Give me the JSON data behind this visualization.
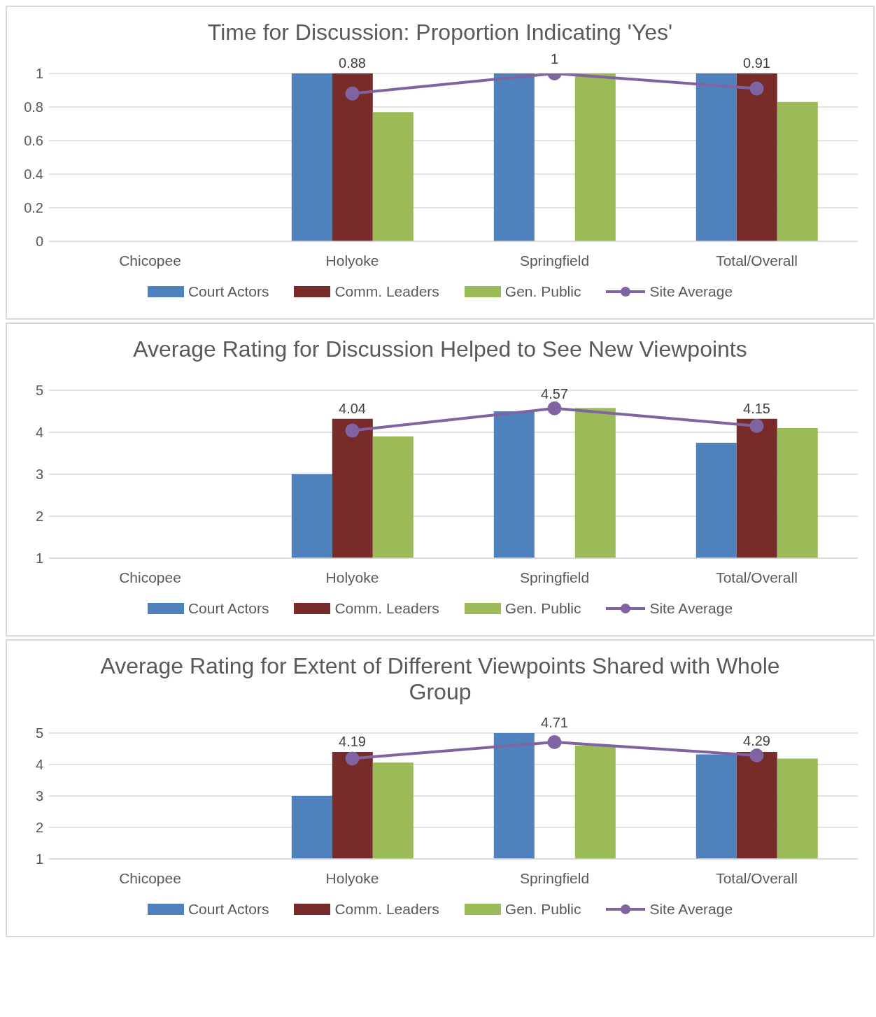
{
  "chart_data": [
    {
      "type": "bar",
      "title": "Time for Discussion: Proportion Indicating 'Yes'",
      "categories": [
        "Chicopee",
        "Holyoke",
        "Springfield",
        "Total/Overall"
      ],
      "ylim": [
        0,
        1
      ],
      "yticks": [
        0,
        0.2,
        0.4,
        0.6,
        0.8,
        1
      ],
      "grid": "y",
      "legend": "bottom",
      "series": [
        {
          "name": "Court Actors",
          "color": "#4f81bd",
          "values": [
            null,
            1,
            1,
            1
          ]
        },
        {
          "name": "Comm. Leaders",
          "color": "#772c2a",
          "values": [
            null,
            1,
            null,
            1
          ]
        },
        {
          "name": "Gen. Public",
          "color": "#9bbb59",
          "values": [
            null,
            0.77,
            1,
            0.83
          ]
        },
        {
          "name": "Site Average",
          "type": "line",
          "color": "#8064a2",
          "marker": "circle",
          "values": [
            null,
            0.88,
            1,
            0.91
          ],
          "value_labels": [
            null,
            "0.88",
            "1",
            "0.91"
          ]
        }
      ]
    },
    {
      "type": "bar",
      "title": "Average Rating for Discussion Helped to See New Viewpoints",
      "categories": [
        "Chicopee",
        "Holyoke",
        "Springfield",
        "Total/Overall"
      ],
      "ylim": [
        1,
        5
      ],
      "yticks": [
        1,
        2,
        3,
        4,
        5
      ],
      "grid": "y",
      "legend": "bottom",
      "series": [
        {
          "name": "Court Actors",
          "color": "#4f81bd",
          "values": [
            null,
            3,
            4.5,
            3.75
          ]
        },
        {
          "name": "Comm. Leaders",
          "color": "#772c2a",
          "values": [
            null,
            4.32,
            null,
            4.32
          ]
        },
        {
          "name": "Gen. Public",
          "color": "#9bbb59",
          "values": [
            null,
            3.9,
            4.58,
            4.1
          ]
        },
        {
          "name": "Site Average",
          "type": "line",
          "color": "#8064a2",
          "marker": "circle",
          "values": [
            null,
            4.04,
            4.57,
            4.15
          ],
          "value_labels": [
            null,
            "4.04",
            "4.57",
            "4.15"
          ]
        }
      ]
    },
    {
      "type": "bar",
      "title": "Average Rating for Extent of Different Viewpoints Shared with Whole Group",
      "categories": [
        "Chicopee",
        "Holyoke",
        "Springfield",
        "Total/Overall"
      ],
      "ylim": [
        1,
        5
      ],
      "yticks": [
        1,
        2,
        3,
        4,
        5
      ],
      "grid": "y",
      "legend": "bottom",
      "series": [
        {
          "name": "Court Actors",
          "color": "#4f81bd",
          "values": [
            null,
            3,
            5,
            4.32
          ]
        },
        {
          "name": "Comm. Leaders",
          "color": "#772c2a",
          "values": [
            null,
            4.4,
            null,
            4.4
          ]
        },
        {
          "name": "Gen. Public",
          "color": "#9bbb59",
          "values": [
            null,
            4.06,
            4.6,
            4.19
          ]
        },
        {
          "name": "Site Average",
          "type": "line",
          "color": "#8064a2",
          "marker": "circle",
          "values": [
            null,
            4.19,
            4.71,
            4.29
          ],
          "value_labels": [
            null,
            "4.19",
            "4.71",
            "4.29"
          ]
        }
      ]
    }
  ]
}
